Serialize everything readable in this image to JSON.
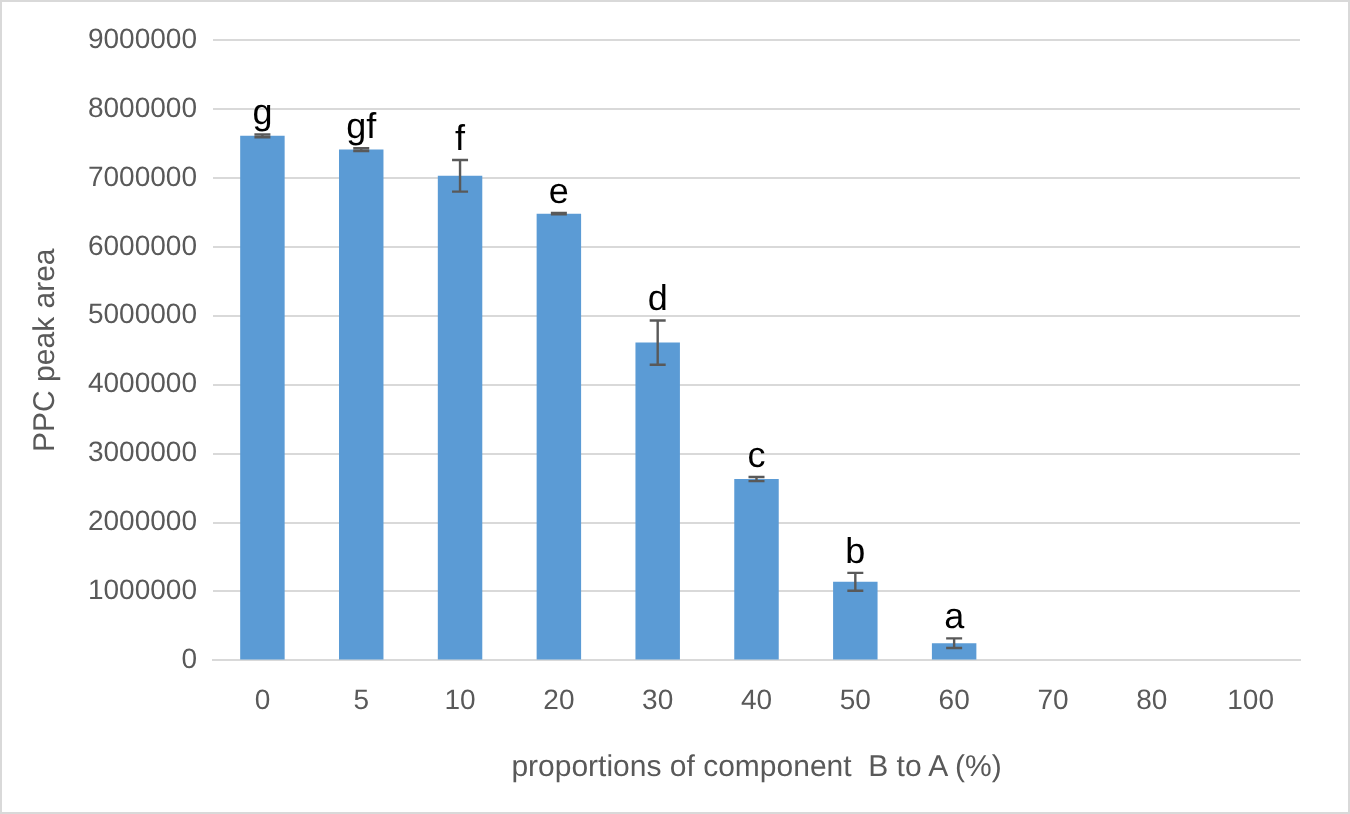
{
  "chart_data": {
    "type": "bar",
    "xlabel": "proportions of component  B to A (%)",
    "ylabel": "PPC peak area",
    "categories": [
      "0",
      "5",
      "10",
      "20",
      "30",
      "40",
      "50",
      "60",
      "70",
      "80",
      "100"
    ],
    "values": [
      7610000,
      7410000,
      7030000,
      6480000,
      4610000,
      2630000,
      1140000,
      250000,
      0,
      0,
      0
    ],
    "errors": [
      20000,
      20000,
      230000,
      10000,
      320000,
      30000,
      130000,
      70000,
      null,
      null,
      null
    ],
    "color": "#5b9bd5",
    "ylim": [
      0,
      9000000
    ],
    "yticks": [
      0,
      1000000,
      2000000,
      3000000,
      4000000,
      5000000,
      6000000,
      7000000,
      8000000,
      9000000
    ],
    "grid": "y",
    "legend": false,
    "annotations": [
      {
        "text": "g",
        "x": "0",
        "y": 7630000
      },
      {
        "text": "gf",
        "x": "5",
        "y": 7430000
      },
      {
        "text": "f",
        "x": "10",
        "y": 7260000
      },
      {
        "text": "e",
        "x": "20",
        "y": 6490000
      },
      {
        "text": "d",
        "x": "30",
        "y": 4930000
      },
      {
        "text": "c",
        "x": "40",
        "y": 2660000
      },
      {
        "text": "b",
        "x": "50",
        "y": 1270000
      },
      {
        "text": "a",
        "x": "60",
        "y": 320000
      }
    ]
  }
}
